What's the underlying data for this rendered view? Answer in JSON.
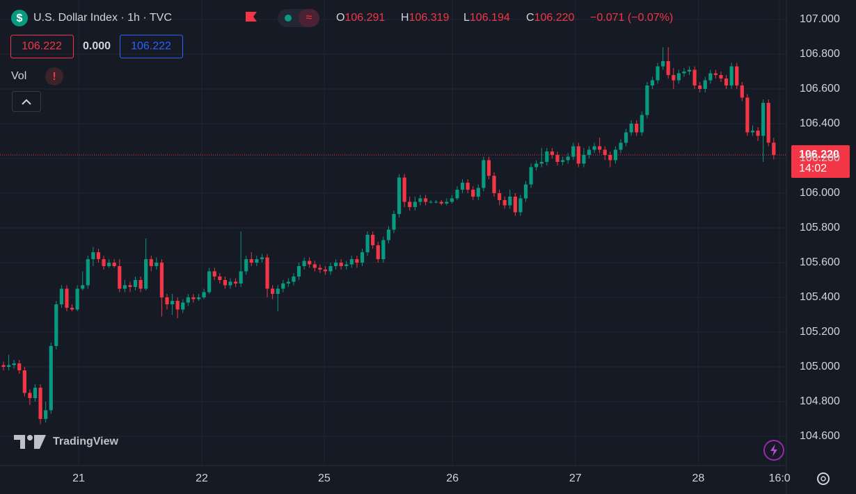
{
  "chart_data": {
    "type": "candlestick",
    "title": "U.S. Dollar Index · 1h · TVC",
    "ohlc_legend": [
      {
        "label": "O",
        "value": "106.291"
      },
      {
        "label": "H",
        "value": "106.319"
      },
      {
        "label": "L",
        "value": "106.194"
      },
      {
        "label": "C",
        "value": "106.220"
      }
    ],
    "change": "−0.071 (−0.07%)",
    "bid": "106.222",
    "spread": "0.000",
    "ask": "106.222",
    "volume_label": "Vol",
    "last_price_label": "106.220",
    "countdown": "14:02",
    "watermark": "TradingView",
    "up_color": "#089981",
    "down_color": "#f23645",
    "grid": true,
    "last_price": 106.22,
    "xlim": [
      -0.66,
      148.4
    ],
    "ylim": [
      104.432,
      107.112
    ],
    "xticks": [
      {
        "value": 14.25,
        "label": "21"
      },
      {
        "value": 37.6,
        "label": "22"
      },
      {
        "value": 60.8,
        "label": "25"
      },
      {
        "value": 85.1,
        "label": "26"
      },
      {
        "value": 108.4,
        "label": "27"
      },
      {
        "value": 131.7,
        "label": "28"
      },
      {
        "value": 147.1,
        "label": "16:0"
      }
    ],
    "yticks": [
      {
        "value": 104.6,
        "label": "104.600"
      },
      {
        "value": 104.8,
        "label": "104.800"
      },
      {
        "value": 105.0,
        "label": "105.000"
      },
      {
        "value": 105.2,
        "label": "105.200"
      },
      {
        "value": 105.4,
        "label": "105.400"
      },
      {
        "value": 105.6,
        "label": "105.600"
      },
      {
        "value": 105.8,
        "label": "105.800"
      },
      {
        "value": 106.0,
        "label": "106.000"
      },
      {
        "value": 106.2,
        "label": "106.200"
      },
      {
        "value": 106.4,
        "label": "106.400"
      },
      {
        "value": 106.6,
        "label": "106.600"
      },
      {
        "value": 106.8,
        "label": "106.800"
      },
      {
        "value": 107.0,
        "label": "107.000"
      }
    ],
    "series": [
      {
        "open": [
          105.01,
          105.0,
          105.01,
          105.02,
          104.98,
          104.85,
          104.82,
          104.88,
          104.7,
          104.75,
          105.12,
          105.36,
          105.45,
          105.34,
          105.33,
          105.45,
          105.47,
          105.62,
          105.66,
          105.62,
          105.58,
          105.6,
          105.58,
          105.45,
          105.47,
          105.46,
          105.5,
          105.45,
          105.62,
          105.58,
          105.6,
          105.4,
          105.36,
          105.38,
          105.33,
          105.37,
          105.4,
          105.39,
          105.4,
          105.43,
          105.55,
          105.52,
          105.5,
          105.47,
          105.49,
          105.48,
          105.55,
          105.62,
          105.6,
          105.62,
          105.63,
          105.45,
          105.42,
          105.45,
          105.48,
          105.49,
          105.52,
          105.58,
          105.61,
          105.59,
          105.57,
          105.56,
          105.55,
          105.58,
          105.6,
          105.58,
          105.59,
          105.62,
          105.6,
          105.66,
          105.76,
          105.7,
          105.62,
          105.73,
          105.79,
          105.88,
          106.09,
          105.95,
          105.92,
          105.95,
          105.97,
          105.95,
          105.95,
          105.95,
          105.94,
          105.95,
          105.97,
          106.02,
          106.06,
          106.02,
          105.98,
          106.03,
          106.19,
          106.1,
          106.0,
          105.96,
          105.93,
          105.98,
          105.89,
          105.97,
          106.05,
          106.15,
          106.17,
          106.18,
          106.24,
          106.22,
          106.18,
          106.19,
          106.21,
          106.27,
          106.17,
          106.22,
          106.25,
          106.27,
          106.25,
          106.22,
          106.19,
          106.25,
          106.29,
          106.35,
          106.4,
          106.35,
          106.45,
          106.62,
          106.65,
          106.73,
          106.76,
          106.68,
          106.65,
          106.69,
          106.7,
          106.71,
          106.62,
          106.6,
          106.65,
          106.69,
          106.68,
          106.66,
          106.62,
          106.73,
          106.62,
          106.55,
          106.35,
          106.36,
          106.33,
          106.52,
          106.291
        ],
        "high": [
          105.03,
          105.07,
          105.04,
          105.04,
          105.0,
          104.87,
          104.9,
          104.9,
          104.8,
          105.14,
          105.38,
          105.47,
          105.47,
          105.36,
          105.47,
          105.55,
          105.64,
          105.69,
          105.68,
          105.64,
          105.62,
          105.62,
          105.62,
          105.5,
          105.49,
          105.52,
          105.52,
          105.74,
          105.64,
          105.63,
          105.62,
          105.42,
          105.42,
          105.4,
          105.39,
          105.42,
          105.42,
          105.42,
          105.45,
          105.57,
          105.57,
          105.54,
          105.52,
          105.51,
          105.51,
          105.78,
          105.64,
          105.66,
          105.64,
          105.65,
          105.65,
          105.47,
          105.47,
          105.5,
          105.51,
          105.54,
          105.6,
          105.63,
          105.63,
          105.61,
          105.59,
          105.58,
          105.6,
          105.62,
          105.62,
          105.61,
          105.64,
          105.64,
          105.68,
          105.78,
          105.78,
          105.72,
          105.75,
          105.81,
          105.9,
          106.11,
          106.11,
          105.98,
          105.98,
          105.99,
          105.99,
          105.96,
          105.96,
          105.96,
          105.97,
          105.99,
          106.04,
          106.08,
          106.08,
          106.04,
          106.05,
          106.21,
          106.21,
          106.12,
          106.02,
          105.98,
          106.02,
          106.0,
          105.99,
          106.07,
          106.17,
          106.19,
          106.26,
          106.26,
          106.26,
          106.24,
          106.21,
          106.23,
          106.29,
          106.29,
          106.26,
          106.27,
          106.29,
          106.32,
          106.27,
          106.24,
          106.27,
          106.31,
          106.37,
          106.42,
          106.42,
          106.47,
          106.64,
          106.67,
          106.75,
          106.84,
          106.84,
          106.72,
          106.71,
          106.72,
          106.73,
          106.73,
          106.64,
          106.67,
          106.71,
          106.71,
          106.7,
          106.68,
          106.75,
          106.75,
          106.64,
          106.57,
          106.39,
          106.38,
          106.54,
          106.54,
          106.319
        ],
        "low": [
          104.98,
          104.98,
          104.99,
          104.96,
          104.83,
          104.78,
          104.8,
          104.67,
          104.68,
          104.73,
          105.1,
          105.34,
          105.32,
          105.32,
          105.32,
          105.44,
          105.45,
          105.58,
          105.6,
          105.56,
          105.57,
          105.57,
          105.43,
          105.43,
          105.43,
          105.44,
          105.43,
          105.44,
          105.55,
          105.56,
          105.29,
          105.33,
          105.3,
          105.28,
          105.31,
          105.35,
          105.37,
          105.38,
          105.39,
          105.42,
          105.5,
          105.48,
          105.45,
          105.45,
          105.46,
          105.46,
          105.53,
          105.58,
          105.58,
          105.6,
          105.4,
          105.39,
          105.32,
          105.43,
          105.46,
          105.47,
          105.5,
          105.56,
          105.57,
          105.55,
          105.54,
          105.53,
          105.53,
          105.56,
          105.56,
          105.56,
          105.57,
          105.57,
          105.58,
          105.64,
          105.68,
          105.6,
          105.6,
          105.71,
          105.77,
          105.86,
          105.92,
          105.9,
          105.9,
          105.93,
          105.93,
          105.94,
          105.94,
          105.93,
          105.93,
          105.94,
          105.96,
          106.0,
          106.0,
          105.96,
          105.96,
          106.01,
          106.08,
          105.98,
          105.93,
          105.91,
          105.91,
          105.87,
          105.87,
          105.95,
          106.03,
          106.13,
          106.15,
          106.16,
          106.2,
          106.16,
          106.16,
          106.17,
          106.19,
          106.15,
          106.15,
          106.2,
          106.23,
          106.23,
          106.19,
          106.15,
          106.17,
          106.23,
          106.27,
          106.33,
          106.33,
          106.33,
          106.43,
          106.6,
          106.63,
          106.71,
          106.66,
          106.6,
          106.63,
          106.67,
          106.68,
          106.6,
          106.58,
          106.58,
          106.63,
          106.66,
          106.64,
          106.6,
          106.6,
          106.6,
          106.53,
          106.33,
          106.33,
          106.3,
          106.18,
          106.27,
          106.194
        ],
        "close": [
          105.0,
          105.01,
          105.02,
          104.98,
          104.85,
          104.82,
          104.88,
          104.7,
          104.75,
          105.12,
          105.36,
          105.45,
          105.34,
          105.33,
          105.45,
          105.47,
          105.62,
          105.66,
          105.62,
          105.58,
          105.6,
          105.58,
          105.45,
          105.47,
          105.46,
          105.5,
          105.45,
          105.62,
          105.58,
          105.6,
          105.4,
          105.36,
          105.38,
          105.33,
          105.37,
          105.4,
          105.39,
          105.4,
          105.43,
          105.55,
          105.52,
          105.5,
          105.47,
          105.49,
          105.48,
          105.55,
          105.62,
          105.6,
          105.62,
          105.63,
          105.45,
          105.42,
          105.45,
          105.48,
          105.49,
          105.52,
          105.58,
          105.61,
          105.59,
          105.57,
          105.56,
          105.55,
          105.58,
          105.6,
          105.58,
          105.59,
          105.62,
          105.6,
          105.66,
          105.76,
          105.7,
          105.62,
          105.73,
          105.79,
          105.88,
          106.09,
          105.95,
          105.92,
          105.95,
          105.97,
          105.95,
          105.95,
          105.95,
          105.94,
          105.95,
          105.97,
          106.02,
          106.06,
          106.02,
          105.98,
          106.03,
          106.19,
          106.1,
          106.0,
          105.96,
          105.93,
          105.98,
          105.89,
          105.97,
          106.05,
          106.15,
          106.17,
          106.18,
          106.24,
          106.22,
          106.18,
          106.19,
          106.21,
          106.27,
          106.17,
          106.22,
          106.25,
          106.27,
          106.25,
          106.22,
          106.19,
          106.25,
          106.29,
          106.35,
          106.4,
          106.35,
          106.45,
          106.62,
          106.65,
          106.73,
          106.76,
          106.68,
          106.65,
          106.69,
          106.7,
          106.71,
          106.62,
          106.6,
          106.65,
          106.69,
          106.68,
          106.66,
          106.62,
          106.73,
          106.62,
          106.55,
          106.35,
          106.36,
          106.33,
          106.52,
          106.291,
          106.22
        ]
      }
    ]
  }
}
